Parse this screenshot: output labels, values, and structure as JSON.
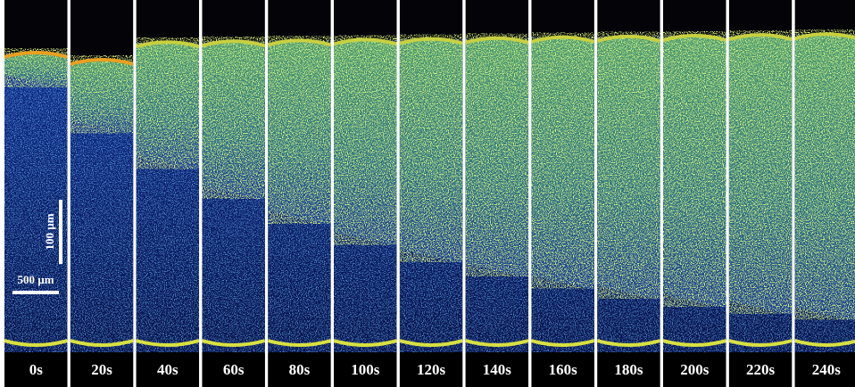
{
  "panels": [
    {
      "label": "0s"
    },
    {
      "label": "20s"
    },
    {
      "label": "40s"
    },
    {
      "label": "60s"
    },
    {
      "label": "80s"
    },
    {
      "label": "100s"
    },
    {
      "label": "120s"
    },
    {
      "label": "140s"
    },
    {
      "label": "160s"
    },
    {
      "label": "180s"
    },
    {
      "label": "200s"
    },
    {
      "label": "220s"
    },
    {
      "label": "240s"
    }
  ],
  "scale_bars": {
    "vertical": "100 µm",
    "horizontal": "500 µm"
  }
}
